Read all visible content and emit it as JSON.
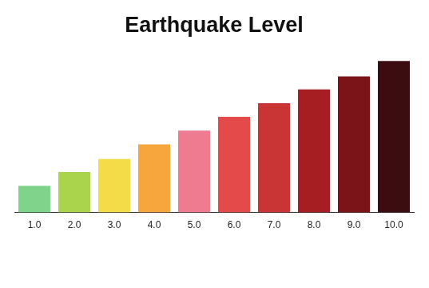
{
  "chart_data": {
    "type": "bar",
    "title": "Earthquake Level",
    "categories": [
      "1.0",
      "2.0",
      "3.0",
      "4.0",
      "5.0",
      "6.0",
      "7.0",
      "8.0",
      "9.0",
      "10.0"
    ],
    "values": [
      35,
      53,
      70,
      89,
      107,
      125,
      143,
      161,
      178,
      198
    ],
    "colors": [
      "#7fd38a",
      "#a9d44c",
      "#f3dc48",
      "#f6a63c",
      "#ee7b90",
      "#e54a4b",
      "#c93434",
      "#a61d22",
      "#7b1419",
      "#3b0c10"
    ],
    "ylim": [
      0,
      200
    ],
    "grid": false,
    "tick_labels": "x"
  }
}
